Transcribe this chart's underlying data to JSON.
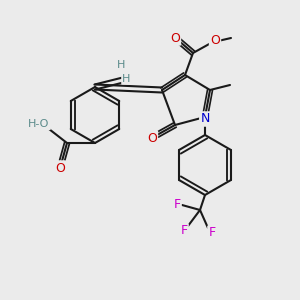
{
  "bg_color": "#ebebeb",
  "bond_color": "#1a1a1a",
  "oxygen_color": "#cc0000",
  "nitrogen_color": "#0000cc",
  "fluorine_color": "#cc00cc",
  "hydrogen_color": "#5a8a8a",
  "atoms": {
    "C_bond": "#1a1a1a",
    "O": "#cc0000",
    "N": "#0000cc",
    "F": "#cc00cc",
    "H": "#5a8a8a"
  },
  "lw": 1.5,
  "lw_double": 1.4,
  "fontsize": 9,
  "fontsize_small": 8
}
